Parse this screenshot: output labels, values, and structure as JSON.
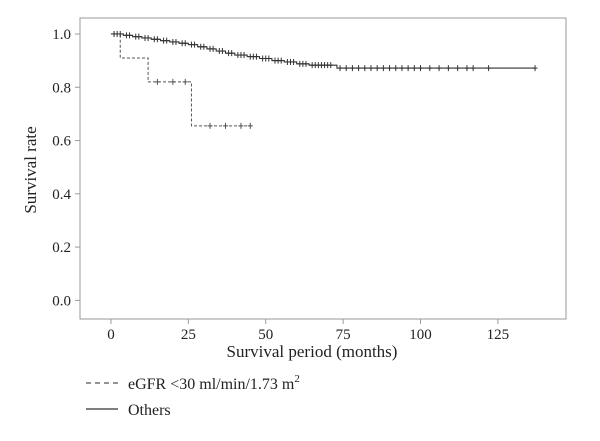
{
  "chart_data": {
    "type": "line",
    "xlabel": "Survival period (months)",
    "ylabel": "Survival rate",
    "xlim": [
      -10,
      147
    ],
    "ylim": [
      -0.07,
      1.06
    ],
    "xticks": [
      0,
      25,
      50,
      75,
      100,
      125
    ],
    "yticks": [
      0.0,
      0.2,
      0.4,
      0.6,
      0.8,
      1.0
    ],
    "xtick_labels": [
      "0",
      "25",
      "50",
      "75",
      "100",
      "125"
    ],
    "ytick_labels": [
      "0.0",
      "0.2",
      "0.4",
      "0.6",
      "0.8",
      "1.0"
    ],
    "grid": false,
    "legend_position": "bottom-left, below plot",
    "series": [
      {
        "name": "eGFR <30 ml/min/1.73 m",
        "name_superscript": "2",
        "style": "dashed",
        "color": "#555555",
        "steps": [
          [
            0,
            1.0
          ],
          [
            3,
            0.91
          ],
          [
            12,
            0.82
          ],
          [
            26,
            0.655
          ],
          [
            46,
            0.655
          ]
        ],
        "censored": [
          [
            1,
            1.0
          ],
          [
            15,
            0.82
          ],
          [
            20,
            0.82
          ],
          [
            24,
            0.82
          ],
          [
            32,
            0.655
          ],
          [
            37,
            0.655
          ],
          [
            42,
            0.655
          ],
          [
            45,
            0.655
          ]
        ]
      },
      {
        "name": "Others",
        "style": "solid",
        "color": "#333333",
        "steps": [
          [
            0,
            1.0
          ],
          [
            4,
            0.995
          ],
          [
            7,
            0.99
          ],
          [
            10,
            0.985
          ],
          [
            13,
            0.98
          ],
          [
            16,
            0.975
          ],
          [
            19,
            0.97
          ],
          [
            22,
            0.965
          ],
          [
            25,
            0.96
          ],
          [
            28,
            0.952
          ],
          [
            31,
            0.944
          ],
          [
            34,
            0.936
          ],
          [
            37,
            0.928
          ],
          [
            40,
            0.921
          ],
          [
            44,
            0.915
          ],
          [
            48,
            0.908
          ],
          [
            52,
            0.9
          ],
          [
            56,
            0.895
          ],
          [
            60,
            0.888
          ],
          [
            64,
            0.883
          ],
          [
            73,
            0.872
          ],
          [
            137,
            0.872
          ]
        ],
        "censored": [
          [
            1,
            1.0
          ],
          [
            2,
            1.0
          ],
          [
            3,
            1.0
          ],
          [
            5,
            0.995
          ],
          [
            6,
            0.995
          ],
          [
            8,
            0.99
          ],
          [
            9,
            0.99
          ],
          [
            11,
            0.985
          ],
          [
            12,
            0.985
          ],
          [
            14,
            0.98
          ],
          [
            15,
            0.98
          ],
          [
            17,
            0.975
          ],
          [
            18,
            0.975
          ],
          [
            20,
            0.97
          ],
          [
            21,
            0.97
          ],
          [
            23,
            0.965
          ],
          [
            24,
            0.965
          ],
          [
            26,
            0.96
          ],
          [
            27,
            0.96
          ],
          [
            29,
            0.952
          ],
          [
            30,
            0.952
          ],
          [
            32,
            0.944
          ],
          [
            33,
            0.944
          ],
          [
            35,
            0.936
          ],
          [
            36,
            0.936
          ],
          [
            38,
            0.928
          ],
          [
            39,
            0.928
          ],
          [
            41,
            0.921
          ],
          [
            42,
            0.921
          ],
          [
            43,
            0.921
          ],
          [
            45,
            0.915
          ],
          [
            46,
            0.915
          ],
          [
            47,
            0.915
          ],
          [
            49,
            0.908
          ],
          [
            50,
            0.908
          ],
          [
            51,
            0.908
          ],
          [
            53,
            0.9
          ],
          [
            54,
            0.9
          ],
          [
            55,
            0.9
          ],
          [
            57,
            0.895
          ],
          [
            58,
            0.895
          ],
          [
            59,
            0.895
          ],
          [
            61,
            0.888
          ],
          [
            62,
            0.888
          ],
          [
            63,
            0.888
          ],
          [
            65,
            0.883
          ],
          [
            66,
            0.883
          ],
          [
            67,
            0.883
          ],
          [
            68,
            0.883
          ],
          [
            69,
            0.883
          ],
          [
            70,
            0.883
          ],
          [
            71,
            0.883
          ],
          [
            74,
            0.872
          ],
          [
            76,
            0.872
          ],
          [
            78,
            0.872
          ],
          [
            80,
            0.872
          ],
          [
            82,
            0.872
          ],
          [
            84,
            0.872
          ],
          [
            86,
            0.872
          ],
          [
            88,
            0.872
          ],
          [
            90,
            0.872
          ],
          [
            92,
            0.872
          ],
          [
            94,
            0.872
          ],
          [
            96,
            0.872
          ],
          [
            98,
            0.872
          ],
          [
            100,
            0.872
          ],
          [
            103,
            0.872
          ],
          [
            106,
            0.872
          ],
          [
            109,
            0.872
          ],
          [
            112,
            0.872
          ],
          [
            115,
            0.872
          ],
          [
            117,
            0.872
          ],
          [
            122,
            0.872
          ],
          [
            137,
            0.872
          ]
        ]
      }
    ]
  }
}
